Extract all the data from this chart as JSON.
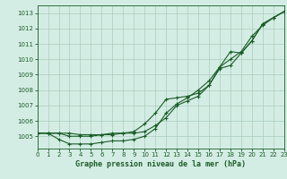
{
  "title": "Graphe pression niveau de la mer (hPa)",
  "bg_color": "#d4ede4",
  "grid_color": "#a8ccbc",
  "line_color": "#1a5c28",
  "x_min": 0,
  "x_max": 23,
  "y_min": 1004.2,
  "y_max": 1013.5,
  "x_ticks": [
    0,
    1,
    2,
    3,
    4,
    5,
    6,
    7,
    8,
    9,
    10,
    11,
    12,
    13,
    14,
    15,
    16,
    17,
    18,
    19,
    20,
    21,
    22,
    23
  ],
  "y_ticks": [
    1005,
    1006,
    1007,
    1008,
    1009,
    1010,
    1011,
    1012,
    1013
  ],
  "series1_x": [
    0,
    1,
    2,
    3,
    4,
    5,
    6,
    7,
    8,
    9,
    10,
    11,
    12,
    13,
    14,
    15,
    16,
    17,
    18,
    19,
    20,
    21,
    22,
    23
  ],
  "series1_y": [
    1005.2,
    1005.2,
    1005.2,
    1005.2,
    1005.1,
    1005.1,
    1005.1,
    1005.1,
    1005.2,
    1005.2,
    1005.3,
    1005.7,
    1006.2,
    1007.0,
    1007.3,
    1007.6,
    1008.3,
    1009.4,
    1009.6,
    1010.4,
    1011.2,
    1012.3,
    1012.7,
    1013.1
  ],
  "series2_x": [
    0,
    1,
    2,
    3,
    4,
    5,
    6,
    7,
    8,
    9,
    10,
    11,
    12,
    13,
    14,
    15,
    16,
    17,
    18,
    19,
    20,
    21,
    22,
    23
  ],
  "series2_y": [
    1005.2,
    1005.2,
    1004.8,
    1004.5,
    1004.5,
    1004.5,
    1004.6,
    1004.7,
    1004.7,
    1004.8,
    1005.0,
    1005.5,
    1006.5,
    1007.1,
    1007.5,
    1008.0,
    1008.6,
    1009.5,
    1010.5,
    1010.4,
    1011.2,
    1012.3,
    1012.7,
    1013.1
  ],
  "series3_x": [
    0,
    1,
    2,
    3,
    4,
    5,
    6,
    7,
    8,
    9,
    10,
    11,
    12,
    13,
    14,
    15,
    16,
    17,
    18,
    19,
    20,
    21,
    22,
    23
  ],
  "series3_y": [
    1005.2,
    1005.2,
    1005.2,
    1005.0,
    1005.0,
    1005.0,
    1005.1,
    1005.2,
    1005.2,
    1005.3,
    1005.8,
    1006.5,
    1007.4,
    1007.5,
    1007.6,
    1007.8,
    1008.3,
    1009.5,
    1010.0,
    1010.5,
    1011.5,
    1012.2,
    1012.7,
    1013.1
  ]
}
